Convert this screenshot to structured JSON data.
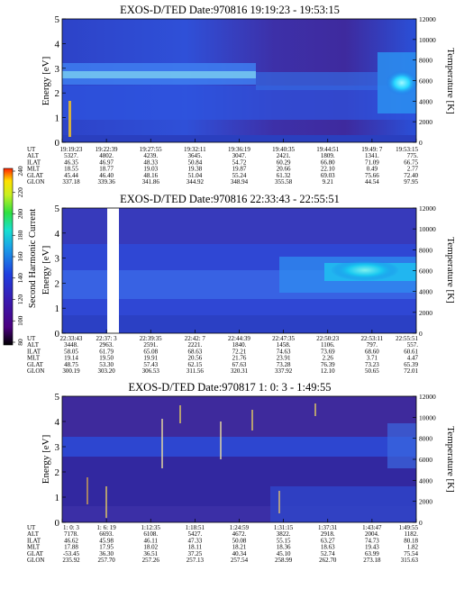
{
  "colorbar": {
    "label": "Second Harmonic Current",
    "ticks": [
      "80",
      "100",
      "120",
      "140",
      "160",
      "180",
      "200",
      "220",
      "240"
    ],
    "colors": [
      "#000000",
      "#4b0080",
      "#3a1ab0",
      "#1f3fe0",
      "#1aa0e8",
      "#17e0d0",
      "#2ee040",
      "#c8f020",
      "#ffe000",
      "#ff2000"
    ]
  },
  "chart_data": [
    {
      "type": "heatmap",
      "title": "EXOS-D/TED   Date:970816   19:19:23 - 19:53:15",
      "ylabel": "Energy [eV]",
      "y2label": "Temperature [K]",
      "yticks": [
        "0",
        "1",
        "2",
        "3",
        "4",
        "5"
      ],
      "y2ticks": [
        "0",
        "2000",
        "4000",
        "6000",
        "8000",
        "10000",
        "12000"
      ],
      "ylim": [
        0,
        5
      ],
      "y2lim": [
        0,
        12000
      ],
      "rows": [
        {
          "name": "UT",
          "values": [
            "19:19:23",
            "19:22:39",
            "19:27:55",
            "19:32:11",
            "19:36:19",
            "19:40:35",
            "19:44:51",
            "19:49: 7",
            "19:53:15"
          ]
        },
        {
          "name": "ALT",
          "values": [
            "5327.",
            "4802.",
            "4239.",
            "3645.",
            "3047.",
            "2421.",
            "1809.",
            "1341.",
            "775."
          ]
        },
        {
          "name": "ILAT",
          "values": [
            "46.35",
            "46.97",
            "48.33",
            "50.84",
            "54.72",
            "60.29",
            "66.80",
            "71.09",
            "66.75"
          ]
        },
        {
          "name": "MLT",
          "values": [
            "18.55",
            "18.77",
            "19.03",
            "19.38",
            "19.87",
            "20.66",
            "22.10",
            "0.49",
            "2.77"
          ]
        },
        {
          "name": "GLAT",
          "values": [
            "45.44",
            "46.40",
            "48.16",
            "51.04",
            "55.24",
            "61.32",
            "69.03",
            "75.66",
            "72.40"
          ]
        },
        {
          "name": "GLON",
          "values": [
            "337.18",
            "339.36",
            "341.86",
            "344.92",
            "348.94",
            "355.58",
            "9.21",
            "44.54",
            "97.95"
          ]
        }
      ]
    },
    {
      "type": "heatmap",
      "title": "EXOS-D/TED   Date:970816   22:33:43 - 22:55:51",
      "ylabel": "Energy [eV]",
      "y2label": "Temperature [K]",
      "yticks": [
        "0",
        "1",
        "2",
        "3",
        "4",
        "5"
      ],
      "y2ticks": [
        "0",
        "2000",
        "4000",
        "6000",
        "8000",
        "10000",
        "12000"
      ],
      "ylim": [
        0,
        5
      ],
      "y2lim": [
        0,
        12000
      ],
      "rows": [
        {
          "name": "UT",
          "values": [
            "22:33:43",
            "22:37: 3",
            "22:39:35",
            "22:42: 7",
            "22:44:39",
            "22:47:35",
            "22:50:23",
            "22:53:11",
            "22:55:51"
          ]
        },
        {
          "name": "ALT",
          "values": [
            "3448.",
            "2963.",
            "2591.",
            "2221.",
            "1840.",
            "1458.",
            "1106.",
            "797.",
            "557."
          ]
        },
        {
          "name": "ILAT",
          "values": [
            "58.05",
            "61.79",
            "65.08",
            "68.63",
            "72.21",
            "74.63",
            "73.69",
            "68.60",
            "60.61"
          ]
        },
        {
          "name": "MLT",
          "values": [
            "19.14",
            "19.50",
            "19.91",
            "20.56",
            "21.76",
            "23.91",
            "2.26",
            "3.71",
            "4.47"
          ]
        },
        {
          "name": "GLAT",
          "values": [
            "48.75",
            "53.30",
            "57.43",
            "62.15",
            "67.63",
            "73.28",
            "76.39",
            "73.23",
            "65.39"
          ]
        },
        {
          "name": "GLON",
          "values": [
            "300.19",
            "303.20",
            "306.53",
            "311.56",
            "320.31",
            "337.92",
            "12.10",
            "50.65",
            "72.01"
          ]
        }
      ]
    },
    {
      "type": "heatmap",
      "title": "EXOS-D/TED   Date:970817   1: 0: 3 - 1:49:55",
      "ylabel": "Energy [eV]",
      "y2label": "Temperature [K]",
      "yticks": [
        "0",
        "1",
        "2",
        "3",
        "4",
        "5"
      ],
      "y2ticks": [
        "0",
        "2000",
        "4000",
        "6000",
        "8000",
        "10000",
        "12000"
      ],
      "ylim": [
        0,
        5
      ],
      "y2lim": [
        0,
        12000
      ],
      "rows": [
        {
          "name": "UT",
          "values": [
            "1: 0: 3",
            "1: 6: 19",
            "1:12:35",
            "1:18:51",
            "1:24:59",
            "1:31:15",
            "1:37:31",
            "1:43:47",
            "1:49:55"
          ]
        },
        {
          "name": "ALT",
          "values": [
            "7178.",
            "6693.",
            "6108.",
            "5427.",
            "4672.",
            "3822.",
            "2918.",
            "2004.",
            "1182."
          ]
        },
        {
          "name": "ILAT",
          "values": [
            "46.62",
            "45.98",
            "46.11",
            "47.33",
            "50.08",
            "55.15",
            "63.27",
            "74.73",
            "80.18"
          ]
        },
        {
          "name": "MLT",
          "values": [
            "17.88",
            "17.95",
            "18.02",
            "18.11",
            "18.21",
            "18.36",
            "18.63",
            "19.43",
            "1.82"
          ]
        },
        {
          "name": "GLAT",
          "values": [
            "-53.45",
            "36.30",
            "36.51",
            "37.25",
            "40.34",
            "45.10",
            "52.74",
            "63.99",
            "75.54"
          ]
        },
        {
          "name": "GLON",
          "values": [
            "235.92",
            "257.70",
            "257.26",
            "257.13",
            "257.54",
            "258.99",
            "262.70",
            "273.18",
            "315.63"
          ]
        }
      ]
    }
  ]
}
